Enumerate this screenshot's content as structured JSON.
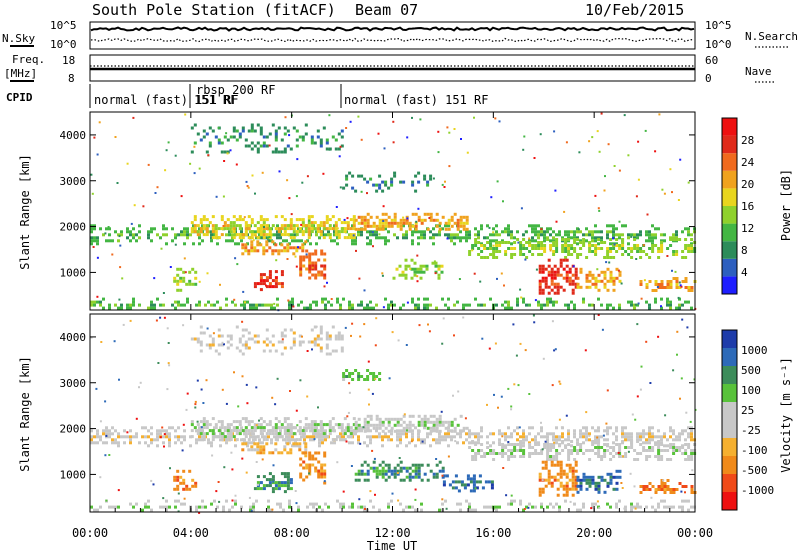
{
  "header": {
    "station": "South Pole Station (fitACF)",
    "beam": "Beam 07",
    "date": "10/Feb/2015"
  },
  "top_panels": {
    "nsky_label": "N.Sky",
    "nsky_ticks": [
      "10^5",
      "10^0"
    ],
    "nsearch_label": "N.Search",
    "freq_label_1": "Freq.",
    "freq_label_2": "[MHz]",
    "freq_ticks": [
      "18",
      "8"
    ],
    "nave_label": "Nave",
    "nave_ticks": [
      "60",
      "0"
    ],
    "cpid_label": "CPID",
    "cpid_segments": [
      {
        "label": "normal (fast) 151 RF",
        "start": 0,
        "end": 4.0
      },
      {
        "label": "rbsp 200 RF",
        "start": 4.0,
        "end": 10.0
      },
      {
        "label": "normal (fast) 151 RF",
        "start": 10.0,
        "end": 24
      }
    ],
    "cpid_overlap_label": "151 RF"
  },
  "colors": {
    "power": [
      "#1e1eff",
      "#2d5fbf",
      "#2c8c5a",
      "#43b643",
      "#8fd12c",
      "#e8d51e",
      "#f0a21e",
      "#f06a1e",
      "#e02a1a",
      "#ee1010"
    ],
    "velocity": [
      "#ee1010",
      "#f04a18",
      "#f08a1a",
      "#f5b030",
      "#c8c8c8",
      "#c8c8c8",
      "#58c23a",
      "#3c8c5a",
      "#2d6ab8",
      "#1e3caa"
    ]
  },
  "chart_data": [
    {
      "type": "heatmap",
      "name": "power",
      "xlabel": "",
      "ylabel": "Slant Range [km]",
      "xlim": [
        0,
        24
      ],
      "ylim": [
        180,
        4500
      ],
      "yticks": [
        "1000",
        "2000",
        "3000",
        "4000"
      ],
      "colorbar_label": "Power [dB]",
      "colorbar_ticks": [
        "4",
        "8",
        "12",
        "16",
        "20",
        "24",
        "28"
      ],
      "bands": [
        {
          "t0": 0.0,
          "t1": 24.0,
          "r0": 1650,
          "r1": 2050,
          "density": 0.55,
          "level": 3
        },
        {
          "t0": 4.0,
          "t1": 10.5,
          "r0": 1750,
          "r1": 2250,
          "density": 0.75,
          "level": 5
        },
        {
          "t0": 10.5,
          "t1": 15.0,
          "r0": 1950,
          "r1": 2300,
          "density": 0.7,
          "level": 6
        },
        {
          "t0": 15.0,
          "t1": 24.0,
          "r0": 1350,
          "r1": 1750,
          "density": 0.65,
          "level": 4
        },
        {
          "t0": 4.0,
          "t1": 10.0,
          "r0": 3650,
          "r1": 4250,
          "density": 0.35,
          "level": 2
        },
        {
          "t0": 10.0,
          "t1": 13.5,
          "r0": 2750,
          "r1": 3200,
          "density": 0.3,
          "level": 2
        },
        {
          "t0": 6.0,
          "t1": 8.5,
          "r0": 1400,
          "r1": 1700,
          "density": 0.6,
          "level": 6
        },
        {
          "t0": 6.5,
          "t1": 7.6,
          "r0": 600,
          "r1": 1050,
          "density": 0.7,
          "level": 8
        },
        {
          "t0": 8.3,
          "t1": 9.3,
          "r0": 800,
          "r1": 1500,
          "density": 0.7,
          "level": 7
        },
        {
          "t0": 3.3,
          "t1": 4.2,
          "r0": 600,
          "r1": 1100,
          "density": 0.5,
          "level": 4
        },
        {
          "t0": 12.0,
          "t1": 14.0,
          "r0": 850,
          "r1": 1300,
          "density": 0.55,
          "level": 4
        },
        {
          "t0": 17.8,
          "t1": 19.3,
          "r0": 550,
          "r1": 1300,
          "density": 0.75,
          "level": 8
        },
        {
          "t0": 19.3,
          "t1": 21.0,
          "r0": 600,
          "r1": 1100,
          "density": 0.6,
          "level": 6
        },
        {
          "t0": 21.8,
          "t1": 24.0,
          "r0": 600,
          "r1": 900,
          "density": 0.55,
          "level": 6
        },
        {
          "t0": 0.0,
          "t1": 24.0,
          "r0": 190,
          "r1": 450,
          "density": 0.4,
          "level": 3
        }
      ]
    },
    {
      "type": "heatmap",
      "name": "velocity",
      "xlabel": "Time UT",
      "ylabel": "Slant Range [km]",
      "xlim": [
        0,
        24
      ],
      "ylim": [
        180,
        4500
      ],
      "xticks": [
        "00:00",
        "04:00",
        "08:00",
        "12:00",
        "16:00",
        "20:00",
        "00:00"
      ],
      "yticks": [
        "1000",
        "2000",
        "3000",
        "4000"
      ],
      "colorbar_label": "Velocity [m s⁻¹]",
      "colorbar_ticks": [
        "-1000",
        "-500",
        "-100",
        "-25",
        "25",
        "100",
        "500",
        "1000"
      ],
      "bands": [
        {
          "t0": 0.0,
          "t1": 24.0,
          "r0": 1650,
          "r1": 2050,
          "density": 0.6,
          "level": 4
        },
        {
          "t0": 4.0,
          "t1": 10.5,
          "r0": 1750,
          "r1": 2250,
          "density": 0.75,
          "level": 5
        },
        {
          "t0": 10.5,
          "t1": 15.0,
          "r0": 1950,
          "r1": 2300,
          "density": 0.7,
          "level": 5
        },
        {
          "t0": 15.0,
          "t1": 24.0,
          "r0": 1350,
          "r1": 1750,
          "density": 0.65,
          "level": 5
        },
        {
          "t0": 4.0,
          "t1": 10.0,
          "r0": 3650,
          "r1": 4250,
          "density": 0.35,
          "level": 4
        },
        {
          "t0": 10.0,
          "t1": 11.5,
          "r0": 3050,
          "r1": 3300,
          "density": 0.5,
          "level": 6
        },
        {
          "t0": 6.0,
          "t1": 8.5,
          "r0": 1400,
          "r1": 1700,
          "density": 0.5,
          "level": 3
        },
        {
          "t0": 6.5,
          "t1": 8.0,
          "r0": 600,
          "r1": 1050,
          "density": 0.6,
          "level": 7
        },
        {
          "t0": 8.3,
          "t1": 9.3,
          "r0": 800,
          "r1": 1500,
          "density": 0.6,
          "level": 2
        },
        {
          "t0": 3.3,
          "t1": 4.2,
          "r0": 600,
          "r1": 1100,
          "density": 0.5,
          "level": 2
        },
        {
          "t0": 10.5,
          "t1": 14.0,
          "r0": 850,
          "r1": 1300,
          "density": 0.55,
          "level": 7
        },
        {
          "t0": 14.0,
          "t1": 16.0,
          "r0": 650,
          "r1": 1000,
          "density": 0.6,
          "level": 8
        },
        {
          "t0": 17.8,
          "t1": 19.3,
          "r0": 550,
          "r1": 1300,
          "density": 0.7,
          "level": 2
        },
        {
          "t0": 19.3,
          "t1": 21.0,
          "r0": 600,
          "r1": 1100,
          "density": 0.6,
          "level": 8
        },
        {
          "t0": 21.8,
          "t1": 24.0,
          "r0": 600,
          "r1": 900,
          "density": 0.55,
          "level": 2
        },
        {
          "t0": 0.0,
          "t1": 24.0,
          "r0": 190,
          "r1": 450,
          "density": 0.35,
          "level": 5
        }
      ]
    }
  ]
}
